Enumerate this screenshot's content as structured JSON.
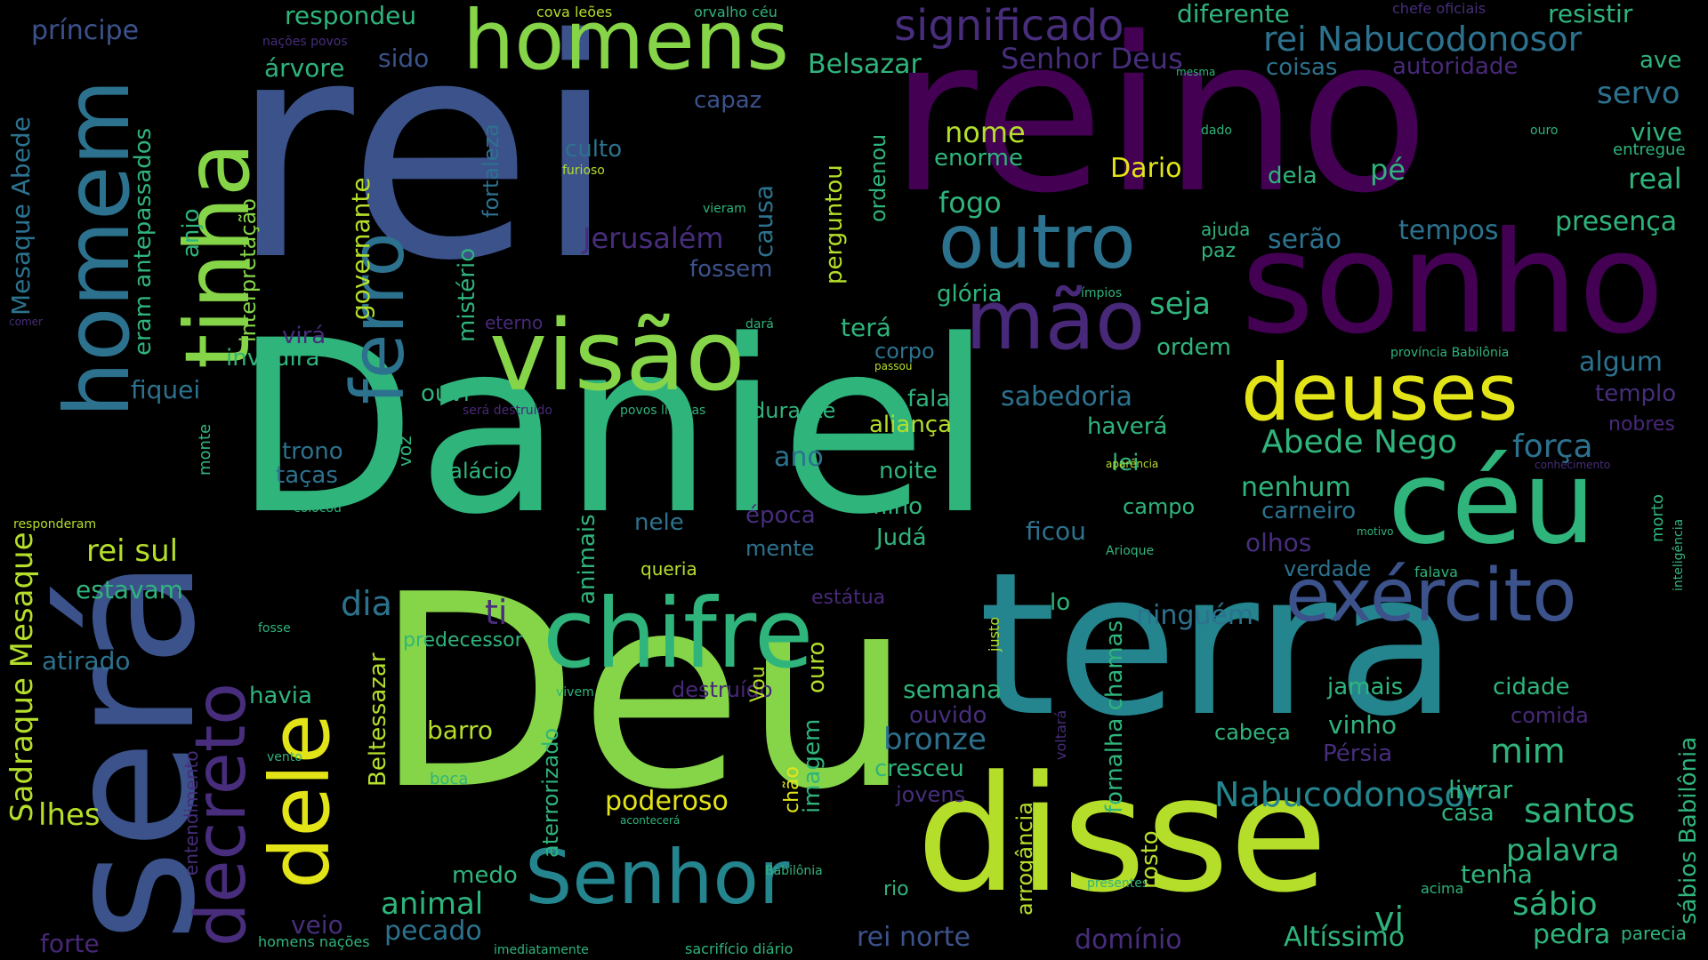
{
  "palette": {
    "background": "#000000",
    "yellow": "#e2e418",
    "lime": "#86d549",
    "green": "#2fb47c",
    "teal": "#25858e",
    "blue": "#3b528b",
    "indigo": "#472d7b",
    "purple": "#440154"
  },
  "words": [
    {
      "text": "Daniel",
      "color": "#2fb47c"
    },
    {
      "text": "rei",
      "color": "#3b528b"
    },
    {
      "text": "reino",
      "color": "#440154"
    },
    {
      "text": "Deu",
      "color": "#86d549"
    },
    {
      "text": "terra",
      "color": "#25858e"
    },
    {
      "text": "será",
      "color": "#3b528b"
    },
    {
      "text": "disse",
      "color": "#b5de2b"
    },
    {
      "text": "sonho",
      "color": "#440154"
    },
    {
      "text": "visão",
      "color": "#86d549"
    },
    {
      "text": "chifre",
      "color": "#2fb47c"
    },
    {
      "text": "céu",
      "color": "#2fb47c"
    },
    {
      "text": "homens",
      "color": "#86d549"
    },
    {
      "text": "mão",
      "color": "#482878"
    },
    {
      "text": "deuses",
      "color": "#e2e418"
    },
    {
      "text": "exército",
      "color": "#3b528b"
    },
    {
      "text": "outro",
      "color": "#2c728e"
    },
    {
      "text": "tinha",
      "color": "#86d549"
    },
    {
      "text": "homem",
      "color": "#2c728e"
    },
    {
      "text": "ferro",
      "color": "#2c728e"
    },
    {
      "text": "Senhor",
      "color": "#25858e"
    },
    {
      "text": "dele",
      "color": "#e2e418"
    },
    {
      "text": "decreto",
      "color": "#472d7b"
    },
    {
      "text": "significado",
      "color": "#472d7b"
    },
    {
      "text": "rei Nabucodonosor",
      "color": "#2c728e"
    },
    {
      "text": "Nabucodonosor",
      "color": "#25858e"
    },
    {
      "text": "Abede Nego",
      "color": "#2fb47c"
    },
    {
      "text": "força",
      "color": "#2c728e"
    },
    {
      "text": "Senhor Deus",
      "color": "#472d7b"
    },
    {
      "text": "Belsazar",
      "color": "#2fb47c"
    },
    {
      "text": "respondeu",
      "color": "#2fb47c"
    },
    {
      "text": "diferente",
      "color": "#2fb47c"
    },
    {
      "text": "resistir",
      "color": "#2fb47c"
    },
    {
      "text": "príncipe",
      "color": "#3b528b"
    },
    {
      "text": "sido",
      "color": "#3b528b"
    },
    {
      "text": "árvore",
      "color": "#2fb47c"
    },
    {
      "text": "coisas",
      "color": "#2c728e"
    },
    {
      "text": "autoridade",
      "color": "#482878"
    },
    {
      "text": "servo",
      "color": "#2c728e"
    },
    {
      "text": "capaz",
      "color": "#3b528b"
    },
    {
      "text": "vive",
      "color": "#2fb47c"
    },
    {
      "text": "nome",
      "color": "#b5de2b"
    },
    {
      "text": "enorme",
      "color": "#2fb47c"
    },
    {
      "text": "culto",
      "color": "#2c728e"
    },
    {
      "text": "Dario",
      "color": "#e2e418"
    },
    {
      "text": "dela",
      "color": "#2fb47c"
    },
    {
      "text": "pé",
      "color": "#2fb47c"
    },
    {
      "text": "real",
      "color": "#2fb47c"
    },
    {
      "text": "fogo",
      "color": "#2fb47c"
    },
    {
      "text": "Jerusalém",
      "color": "#472d7b"
    },
    {
      "text": "serão",
      "color": "#2c728e"
    },
    {
      "text": "tempos",
      "color": "#2c728e"
    },
    {
      "text": "presença",
      "color": "#2fb47c"
    },
    {
      "text": "fossem",
      "color": "#3b528b"
    },
    {
      "text": "glória",
      "color": "#2fb47c"
    },
    {
      "text": "seja",
      "color": "#2fb47c"
    },
    {
      "text": "paz",
      "color": "#2fb47c"
    },
    {
      "text": "ajuda",
      "color": "#2fb47c"
    },
    {
      "text": "terá",
      "color": "#2fb47c"
    },
    {
      "text": "corpo",
      "color": "#2c728e"
    },
    {
      "text": "ordem",
      "color": "#2fb47c"
    },
    {
      "text": "algum",
      "color": "#2c728e"
    },
    {
      "text": "templo",
      "color": "#472d7b"
    },
    {
      "text": "virá",
      "color": "#472d7b"
    },
    {
      "text": "invadirá",
      "color": "#2fb47c"
    },
    {
      "text": "fiquei",
      "color": "#2c728e"
    },
    {
      "text": "ouvi",
      "color": "#2fb47c"
    },
    {
      "text": "falar",
      "color": "#2fb47c"
    },
    {
      "text": "sabedoria",
      "color": "#2c728e"
    },
    {
      "text": "durante",
      "color": "#2fb47c"
    },
    {
      "text": "aliança",
      "color": "#b5de2b"
    },
    {
      "text": "haverá",
      "color": "#2fb47c"
    },
    {
      "text": "nobres",
      "color": "#482878"
    },
    {
      "text": "trono",
      "color": "#2c728e"
    },
    {
      "text": "taças",
      "color": "#2c728e"
    },
    {
      "text": "ano",
      "color": "#2c728e"
    },
    {
      "text": "noite",
      "color": "#2fb47c"
    },
    {
      "text": "lei",
      "color": "#2fb47c"
    },
    {
      "text": "palácio",
      "color": "#2fb47c"
    },
    {
      "text": "nenhum",
      "color": "#2fb47c"
    },
    {
      "text": "filho",
      "color": "#2fb47c"
    },
    {
      "text": "campo",
      "color": "#2fb47c"
    },
    {
      "text": "carneiro",
      "color": "#2c728e"
    },
    {
      "text": "época",
      "color": "#472d7b"
    },
    {
      "text": "nele",
      "color": "#2c728e"
    },
    {
      "text": "Judá",
      "color": "#2fb47c"
    },
    {
      "text": "ficou",
      "color": "#2c728e"
    },
    {
      "text": "olhos",
      "color": "#472d7b"
    },
    {
      "text": "rei sul",
      "color": "#b5de2b"
    },
    {
      "text": "estavam",
      "color": "#2fb47c"
    },
    {
      "text": "mente",
      "color": "#2c728e"
    },
    {
      "text": "verdade",
      "color": "#2c728e"
    },
    {
      "text": "queria",
      "color": "#b5de2b"
    },
    {
      "text": "dia",
      "color": "#2c728e"
    },
    {
      "text": "ti",
      "color": "#472d7b"
    },
    {
      "text": "estátua",
      "color": "#482878"
    },
    {
      "text": "lo",
      "color": "#2fb47c"
    },
    {
      "text": "ninguém",
      "color": "#2c728e"
    },
    {
      "text": "atirado",
      "color": "#2c728e"
    },
    {
      "text": "predecessor",
      "color": "#2fb47c"
    },
    {
      "text": "Vou",
      "color": "#b5de2b"
    },
    {
      "text": "havia",
      "color": "#2fb47c"
    },
    {
      "text": "destruído",
      "color": "#482878"
    },
    {
      "text": "semana",
      "color": "#2fb47c"
    },
    {
      "text": "jamais",
      "color": "#2fb47c"
    },
    {
      "text": "cidade",
      "color": "#2fb47c"
    },
    {
      "text": "ouvido",
      "color": "#472d7b"
    },
    {
      "text": "comida",
      "color": "#482878"
    },
    {
      "text": "barro",
      "color": "#b5de2b"
    },
    {
      "text": "bronze",
      "color": "#2c728e"
    },
    {
      "text": "vinho",
      "color": "#2fb47c"
    },
    {
      "text": "cabeça",
      "color": "#2fb47c"
    },
    {
      "text": "mim",
      "color": "#2fb47c"
    },
    {
      "text": "Pérsia",
      "color": "#472d7b"
    },
    {
      "text": "cresceu",
      "color": "#2fb47c"
    },
    {
      "text": "jovens",
      "color": "#472d7b"
    },
    {
      "text": "livrar",
      "color": "#2fb47c"
    },
    {
      "text": "lhes",
      "color": "#b5de2b"
    },
    {
      "text": "poderoso",
      "color": "#e2e418"
    },
    {
      "text": "casa",
      "color": "#2fb47c"
    },
    {
      "text": "santos",
      "color": "#2fb47c"
    },
    {
      "text": "palavra",
      "color": "#2fb47c"
    },
    {
      "text": "tenha",
      "color": "#2fb47c"
    },
    {
      "text": "medo",
      "color": "#2fb47c"
    },
    {
      "text": "animal",
      "color": "#2fb47c"
    },
    {
      "text": "veio",
      "color": "#472d7b"
    },
    {
      "text": "pecado",
      "color": "#2c728e"
    },
    {
      "text": "rio",
      "color": "#2fb47c"
    },
    {
      "text": "vi",
      "color": "#2fb47c"
    },
    {
      "text": "sábio",
      "color": "#2fb47c"
    },
    {
      "text": "pedra",
      "color": "#2fb47c"
    },
    {
      "text": "parecia",
      "color": "#2fb47c"
    },
    {
      "text": "forte",
      "color": "#482878"
    },
    {
      "text": "rei norte",
      "color": "#3b528b"
    },
    {
      "text": "domínio",
      "color": "#472d7b"
    },
    {
      "text": "Altíssimo",
      "color": "#2fb47c"
    },
    {
      "text": "homens nações",
      "color": "#2fb47c"
    },
    {
      "text": "sacrifício diário",
      "color": "#2fb47c"
    },
    {
      "text": "imediatamente",
      "color": "#2fb47c"
    },
    {
      "text": "acima",
      "color": "#2fb47c"
    },
    {
      "text": "presentes",
      "color": "#2fb47c"
    },
    {
      "text": "Babilônia",
      "color": "#2fb47c"
    },
    {
      "text": "boca",
      "color": "#2fb47c"
    },
    {
      "text": "vento",
      "color": "#2fb47c"
    },
    {
      "text": "cova leões",
      "color": "#b5de2b"
    },
    {
      "text": "orvalho céu",
      "color": "#2fb47c"
    },
    {
      "text": "chefe oficiais",
      "color": "#472d7b"
    },
    {
      "text": "nações povos",
      "color": "#472d7b"
    },
    {
      "text": "mesma",
      "color": "#2fb47c"
    },
    {
      "text": "dado",
      "color": "#2fb47c"
    },
    {
      "text": "ouro",
      "color": "#2fb47c"
    },
    {
      "text": "entregue",
      "color": "#2fb47c"
    },
    {
      "text": "furioso",
      "color": "#b5de2b"
    },
    {
      "text": "vieram",
      "color": "#2fb47c"
    },
    {
      "text": "ímpios",
      "color": "#2fb47c"
    },
    {
      "text": "comer",
      "color": "#472d7b"
    },
    {
      "text": "eterno",
      "color": "#482878"
    },
    {
      "text": "dará",
      "color": "#2fb47c"
    },
    {
      "text": "passou",
      "color": "#b5de2b"
    },
    {
      "text": "província Babilônia",
      "color": "#2fb47c"
    },
    {
      "text": "será destruído",
      "color": "#482878"
    },
    {
      "text": "povos línguas",
      "color": "#2fb47c"
    },
    {
      "text": "aparência",
      "color": "#b5de2b"
    },
    {
      "text": "conhecimento",
      "color": "#472d7b"
    },
    {
      "text": "colocou",
      "color": "#2fb47c"
    },
    {
      "text": "responderam",
      "color": "#b5de2b"
    },
    {
      "text": "motivo",
      "color": "#2fb47c"
    },
    {
      "text": "Arioque",
      "color": "#2fb47c"
    },
    {
      "text": "falava",
      "color": "#2fb47c"
    },
    {
      "text": "fosse",
      "color": "#2fb47c"
    },
    {
      "text": "acontecerá",
      "color": "#2fb47c"
    },
    {
      "text": "vivem",
      "color": "#2fb47c"
    },
    {
      "text": "Mesaque Abede",
      "color": "#2c728e"
    },
    {
      "text": "eram antepassados",
      "color": "#2fb47c"
    },
    {
      "text": "anjo",
      "color": "#2fb47c"
    },
    {
      "text": "interpretação",
      "color": "#86d549"
    },
    {
      "text": "governante",
      "color": "#b5de2b"
    },
    {
      "text": "fortaleza",
      "color": "#2c728e"
    },
    {
      "text": "mistério",
      "color": "#2fb47c"
    },
    {
      "text": "causa",
      "color": "#2c728e"
    },
    {
      "text": "perguntou",
      "color": "#b5de2b"
    },
    {
      "text": "ordenou",
      "color": "#2fb47c"
    },
    {
      "text": "Sadraque Mesaque",
      "color": "#b5de2b"
    },
    {
      "text": "entendimento",
      "color": "#472d7b"
    },
    {
      "text": "monte",
      "color": "#2fb47c"
    },
    {
      "text": "voz",
      "color": "#2fb47c"
    },
    {
      "text": "Beltessazar",
      "color": "#b5de2b"
    },
    {
      "text": "aterrorizado",
      "color": "#2fb47c"
    },
    {
      "text": "animais",
      "color": "#2fb47c"
    },
    {
      "text": "imagem",
      "color": "#2fb47c"
    },
    {
      "text": "ouro",
      "color": "#b5de2b"
    },
    {
      "text": "chão",
      "color": "#e2e418"
    },
    {
      "text": "justo",
      "color": "#b5de2b"
    },
    {
      "text": "voltará",
      "color": "#472d7b"
    },
    {
      "text": "arrogância",
      "color": "#b5de2b"
    },
    {
      "text": "fornalha chamas",
      "color": "#2fb47c"
    },
    {
      "text": "rosto",
      "color": "#b5de2b"
    },
    {
      "text": "sábios Babilônia",
      "color": "#2fb47c"
    },
    {
      "text": "inteligência",
      "color": "#2fb47c"
    },
    {
      "text": "morto",
      "color": "#2fb47c"
    },
    {
      "text": "ave",
      "color": "#2fb47c"
    }
  ]
}
